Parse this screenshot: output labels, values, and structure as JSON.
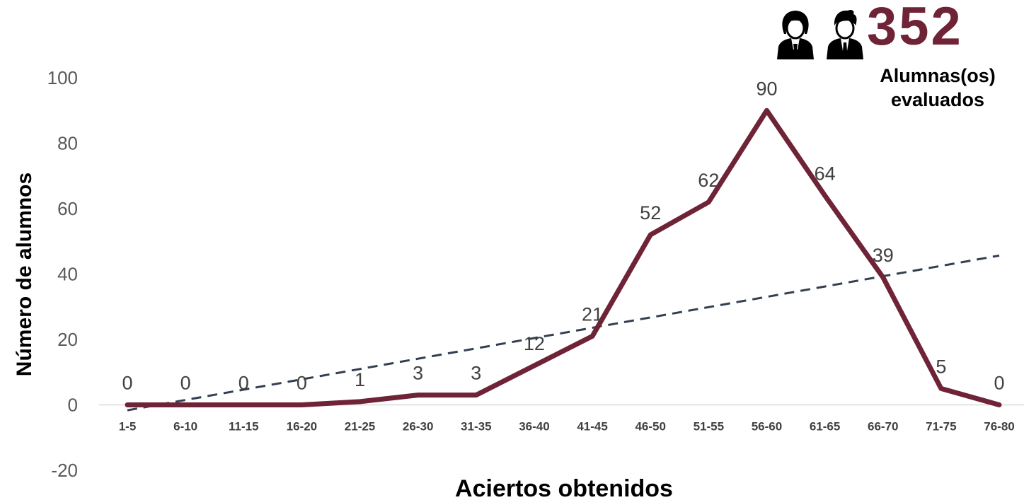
{
  "chart_data": {
    "type": "line",
    "title": "",
    "xlabel": "Aciertos obtenidos",
    "ylabel": "Número de alumnos",
    "ylim": [
      -20,
      100
    ],
    "yticks": [
      "-20",
      "0",
      "20",
      "40",
      "60",
      "80",
      "100"
    ],
    "categories": [
      "1-5",
      "6-10",
      "11-15",
      "16-20",
      "21-25",
      "26-30",
      "31-35",
      "36-40",
      "41-45",
      "46-50",
      "51-55",
      "56-60",
      "61-65",
      "66-70",
      "71-75",
      "76-80"
    ],
    "series": [
      {
        "values": [
          0,
          0,
          0,
          0,
          1,
          3,
          3,
          12,
          21,
          52,
          62,
          90,
          64,
          39,
          5,
          0
        ],
        "color": "#6e2336"
      }
    ],
    "trendline": {
      "kind": "linear",
      "style": "dashed",
      "color": "#333f50"
    },
    "grid": false,
    "legend": "none"
  },
  "badge": {
    "count": "352",
    "caption_line1": "Alumnas(os)",
    "caption_line2": "evaluados",
    "icons": [
      "female-student-icon",
      "male-student-icon"
    ],
    "color": "#6e2336"
  }
}
